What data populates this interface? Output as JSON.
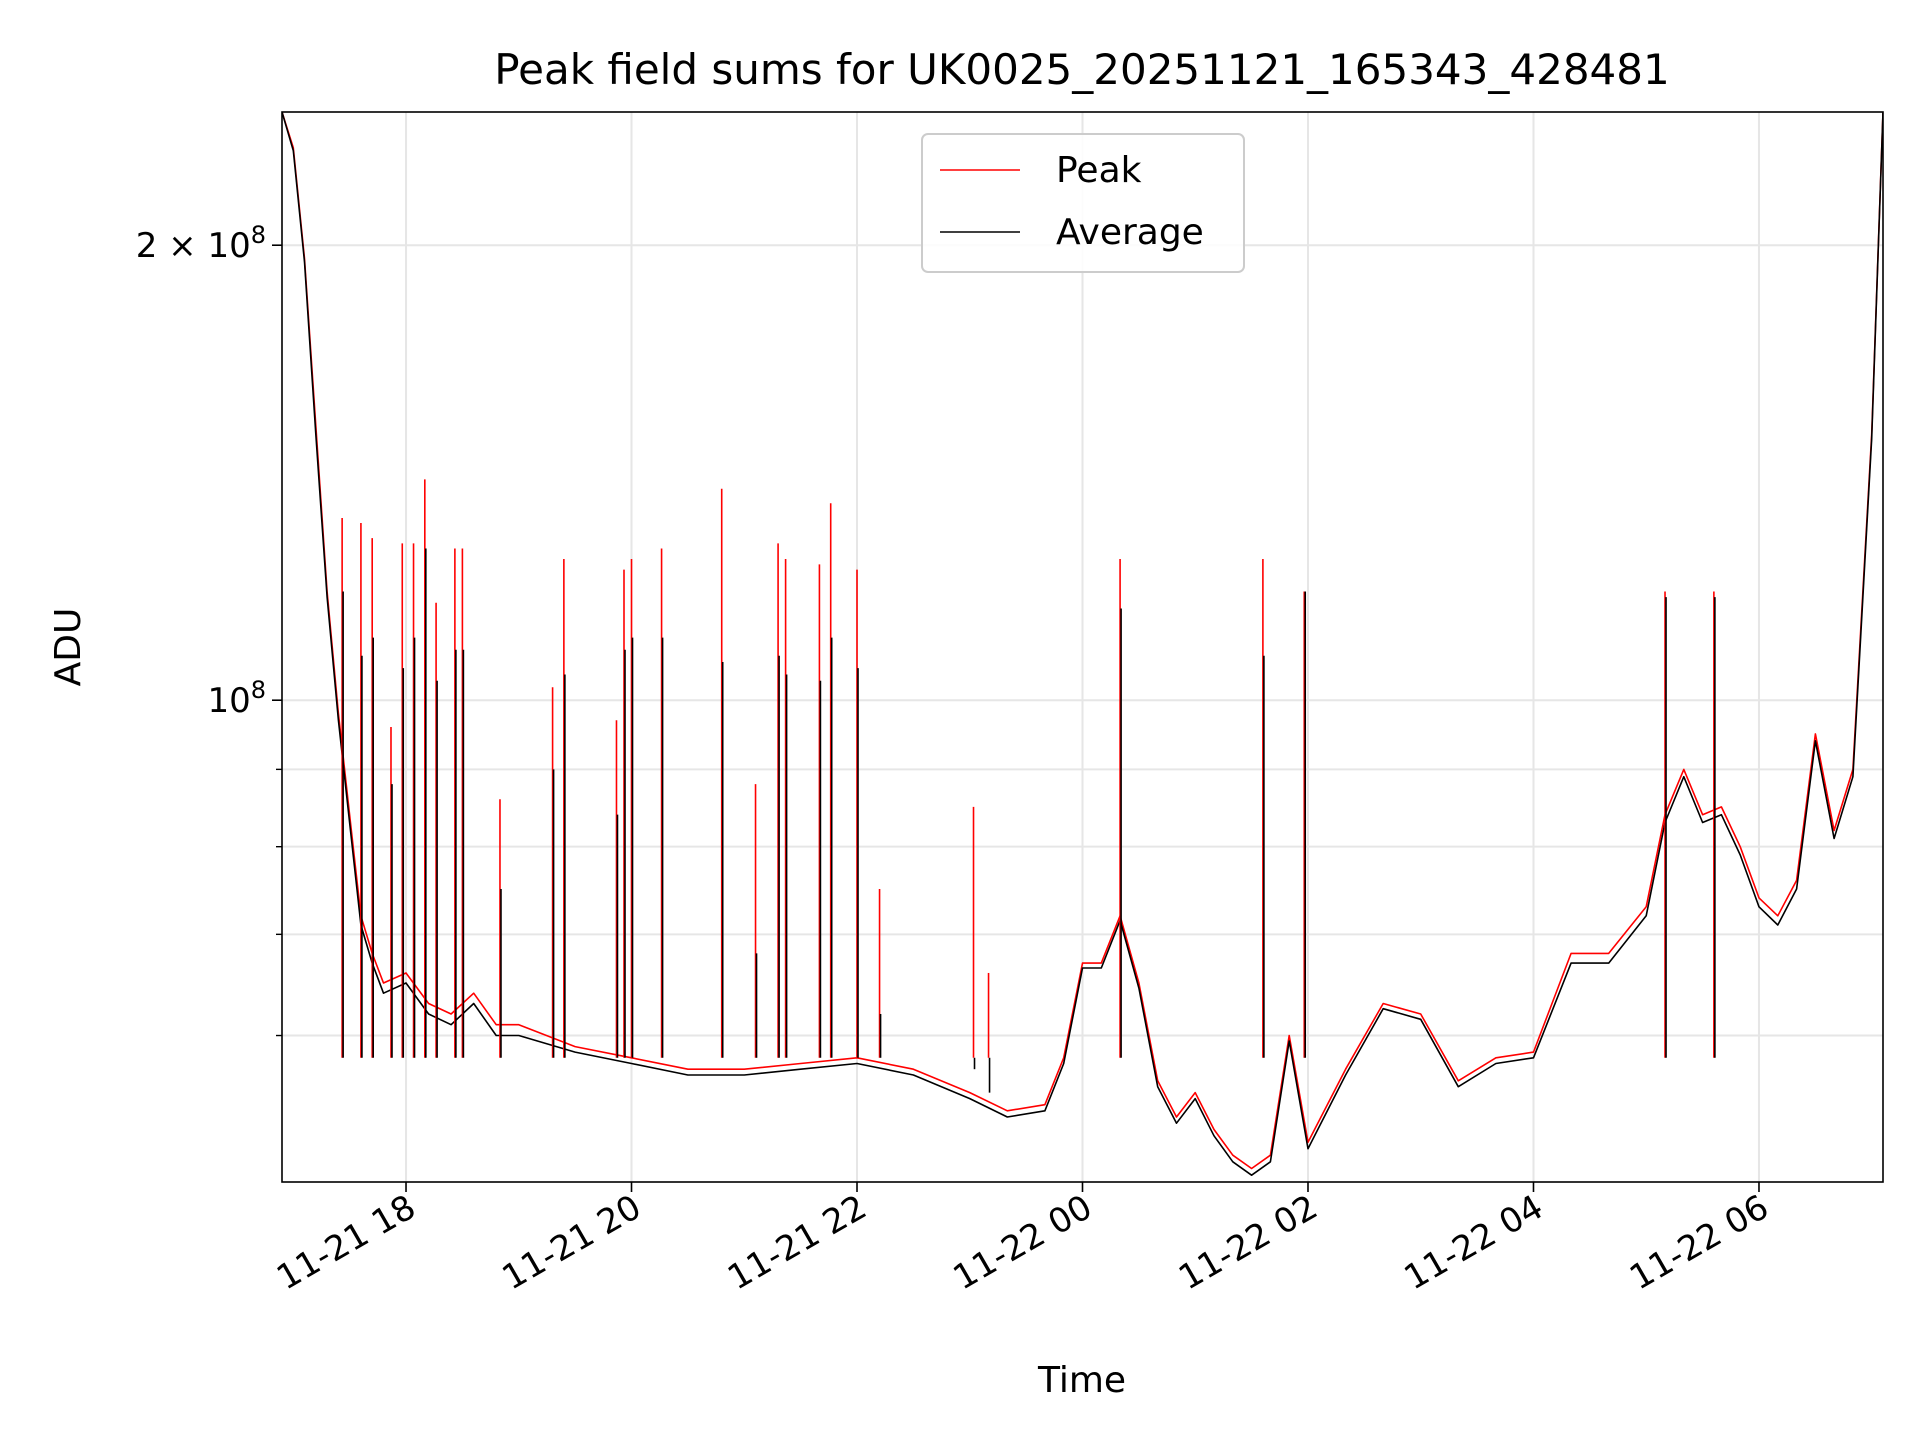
{
  "chart_data": {
    "type": "line",
    "title": "Peak field sums for UK0025_20251121_165343_428481",
    "xlabel": "Time",
    "ylabel": "ADU",
    "yscale": "log",
    "ylim": [
      48000000,
      245000000
    ],
    "xlim": [
      "2025-11-21 16:54",
      "2025-11-22 07:06"
    ],
    "grid": true,
    "legend": {
      "placement": "top-center",
      "entries": [
        "Peak",
        "Average"
      ]
    },
    "x_ticks": [
      "11-21 18",
      "11-21 20",
      "11-21 22",
      "11-22 00",
      "11-22 02",
      "11-22 04",
      "11-22 06"
    ],
    "y_ticks": [
      {
        "value": 200000000,
        "base": "2 × 10",
        "exp": "8"
      },
      {
        "value": 100000000,
        "base": "10",
        "exp": "8"
      }
    ],
    "x": [
      "2025-11-21 16:54",
      "2025-11-21 17:00",
      "2025-11-21 17:06",
      "2025-11-21 17:12",
      "2025-11-21 17:18",
      "2025-11-21 17:24",
      "2025-11-21 17:30",
      "2025-11-21 17:36",
      "2025-11-21 17:42",
      "2025-11-21 17:48",
      "2025-11-21 18:00",
      "2025-11-21 18:12",
      "2025-11-21 18:24",
      "2025-11-21 18:36",
      "2025-11-21 18:48",
      "2025-11-21 19:00",
      "2025-11-21 19:30",
      "2025-11-21 20:00",
      "2025-11-21 20:30",
      "2025-11-21 21:00",
      "2025-11-21 21:30",
      "2025-11-21 22:00",
      "2025-11-21 22:30",
      "2025-11-21 23:00",
      "2025-11-21 23:20",
      "2025-11-21 23:40",
      "2025-11-21 23:50",
      "2025-11-22 00:00",
      "2025-11-22 00:10",
      "2025-11-22 00:20",
      "2025-11-22 00:30",
      "2025-11-22 00:40",
      "2025-11-22 00:50",
      "2025-11-22 01:00",
      "2025-11-22 01:10",
      "2025-11-22 01:20",
      "2025-11-22 01:30",
      "2025-11-22 01:40",
      "2025-11-22 01:50",
      "2025-11-22 02:00",
      "2025-11-22 02:20",
      "2025-11-22 02:40",
      "2025-11-22 03:00",
      "2025-11-22 03:20",
      "2025-11-22 03:40",
      "2025-11-22 04:00",
      "2025-11-22 04:20",
      "2025-11-22 04:40",
      "2025-11-22 05:00",
      "2025-11-22 05:10",
      "2025-11-22 05:20",
      "2025-11-22 05:30",
      "2025-11-22 05:40",
      "2025-11-22 05:50",
      "2025-11-22 06:00",
      "2025-11-22 06:10",
      "2025-11-22 06:20",
      "2025-11-22 06:30",
      "2025-11-22 06:40",
      "2025-11-22 06:50",
      "2025-11-22 07:00",
      "2025-11-22 07:06"
    ],
    "series": [
      {
        "name": "Peak",
        "color": "#ff0000",
        "values": [
          245000000,
          232000000,
          196000000,
          152000000,
          118000000,
          98000000,
          84000000,
          72000000,
          68000000,
          65000000,
          66000000,
          63000000,
          62000000,
          64000000,
          61000000,
          61000000,
          59000000,
          58000000,
          57000000,
          57000000,
          57500000,
          58000000,
          57000000,
          55000000,
          53500000,
          54000000,
          58000000,
          67000000,
          67000000,
          72000000,
          65000000,
          56000000,
          53000000,
          55000000,
          52000000,
          50000000,
          49000000,
          50000000,
          60000000,
          51000000,
          57000000,
          63000000,
          62000000,
          56000000,
          58000000,
          58500000,
          68000000,
          68000000,
          73000000,
          84000000,
          90000000,
          84000000,
          85000000,
          80000000,
          74000000,
          72000000,
          76000000,
          95000000,
          82000000,
          90000000,
          150000000,
          245000000
        ]
      },
      {
        "name": "Average",
        "color": "#000000",
        "values": [
          245000000,
          231000000,
          195000000,
          150000000,
          117000000,
          97000000,
          83000000,
          71000000,
          67000000,
          64000000,
          65000000,
          62000000,
          61000000,
          63000000,
          60000000,
          60000000,
          58500000,
          57500000,
          56500000,
          56500000,
          57000000,
          57500000,
          56500000,
          54500000,
          53000000,
          53500000,
          57500000,
          66500000,
          66500000,
          71500000,
          64500000,
          55500000,
          52500000,
          54500000,
          51500000,
          49500000,
          48500000,
          49500000,
          59500000,
          50500000,
          56500000,
          62500000,
          61500000,
          55500000,
          57500000,
          58000000,
          67000000,
          67000000,
          72000000,
          83000000,
          89000000,
          83000000,
          84000000,
          79000000,
          73000000,
          71000000,
          75000000,
          94000000,
          81000000,
          89000000,
          149000000,
          245000000
        ]
      }
    ],
    "spikes": [
      {
        "x": "2025-11-21 17:26",
        "peak": 132000000,
        "average": 118000000
      },
      {
        "x": "2025-11-21 17:36",
        "peak": 131000000,
        "average": 107000000
      },
      {
        "x": "2025-11-21 17:42",
        "peak": 128000000,
        "average": 110000000
      },
      {
        "x": "2025-11-21 17:52",
        "peak": 96000000,
        "average": 88000000
      },
      {
        "x": "2025-11-21 17:58",
        "peak": 127000000,
        "average": 105000000
      },
      {
        "x": "2025-11-21 18:04",
        "peak": 127000000,
        "average": 110000000
      },
      {
        "x": "2025-11-21 18:10",
        "peak": 140000000,
        "average": 126000000
      },
      {
        "x": "2025-11-21 18:16",
        "peak": 116000000,
        "average": 103000000
      },
      {
        "x": "2025-11-21 18:26",
        "peak": 126000000,
        "average": 108000000
      },
      {
        "x": "2025-11-21 18:30",
        "peak": 126000000,
        "average": 108000000
      },
      {
        "x": "2025-11-21 18:50",
        "peak": 86000000,
        "average": 75000000
      },
      {
        "x": "2025-11-21 19:18",
        "peak": 102000000,
        "average": 90000000
      },
      {
        "x": "2025-11-21 19:24",
        "peak": 124000000,
        "average": 104000000
      },
      {
        "x": "2025-11-21 19:52",
        "peak": 97000000,
        "average": 84000000
      },
      {
        "x": "2025-11-21 19:56",
        "peak": 122000000,
        "average": 108000000
      },
      {
        "x": "2025-11-21 20:00",
        "peak": 124000000,
        "average": 110000000
      },
      {
        "x": "2025-11-21 20:16",
        "peak": 126000000,
        "average": 110000000
      },
      {
        "x": "2025-11-21 20:48",
        "peak": 138000000,
        "average": 106000000
      },
      {
        "x": "2025-11-21 21:06",
        "peak": 88000000,
        "average": 68000000
      },
      {
        "x": "2025-11-21 21:18",
        "peak": 127000000,
        "average": 107000000
      },
      {
        "x": "2025-11-21 21:22",
        "peak": 124000000,
        "average": 104000000
      },
      {
        "x": "2025-11-21 21:40",
        "peak": 123000000,
        "average": 103000000
      },
      {
        "x": "2025-11-21 21:46",
        "peak": 135000000,
        "average": 110000000
      },
      {
        "x": "2025-11-21 22:00",
        "peak": 122000000,
        "average": 105000000
      },
      {
        "x": "2025-11-21 22:12",
        "peak": 75000000,
        "average": 62000000
      },
      {
        "x": "2025-11-21 23:02",
        "peak": 85000000,
        "average": 57000000
      },
      {
        "x": "2025-11-21 23:10",
        "peak": 66000000,
        "average": 55000000
      },
      {
        "x": "2025-11-22 00:20",
        "peak": 124000000,
        "average": 115000000
      },
      {
        "x": "2025-11-22 01:36",
        "peak": 124000000,
        "average": 107000000
      },
      {
        "x": "2025-11-22 01:58",
        "peak": 118000000,
        "average": 118000000
      },
      {
        "x": "2025-11-22 05:10",
        "peak": 118000000,
        "average": 117000000
      },
      {
        "x": "2025-11-22 05:36",
        "peak": 118000000,
        "average": 117000000
      }
    ]
  }
}
